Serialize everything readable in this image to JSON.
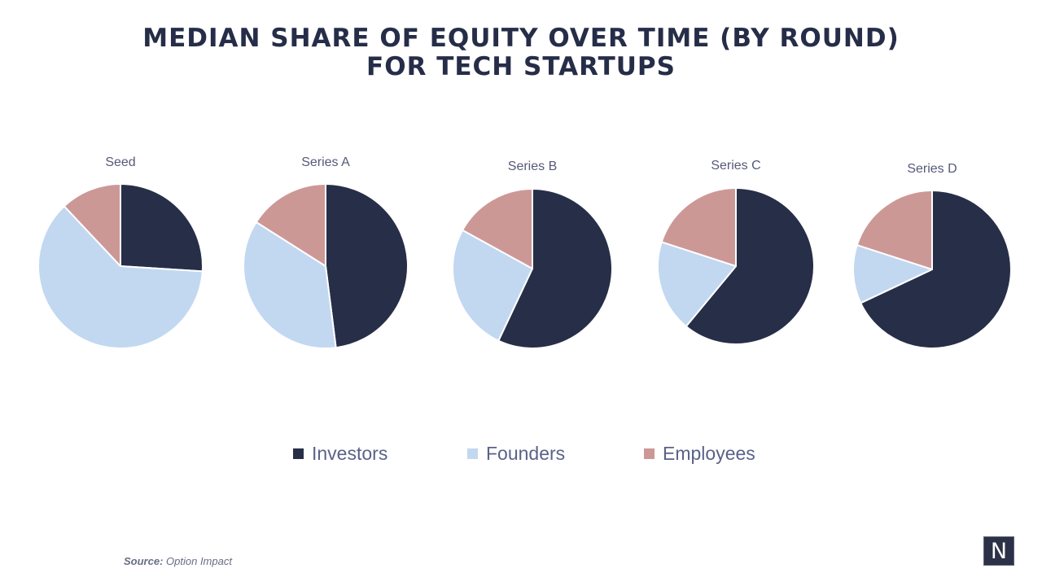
{
  "title_line1": "MEDIAN SHARE OF EQUITY OVER TIME (BY ROUND)",
  "title_line2": "FOR TECH STARTUPS",
  "source_label": "Source:",
  "source_text": "Option Impact",
  "logo_text": "N",
  "colors": {
    "Investors": "#272e48",
    "Founders": "#c2d8f1",
    "Employees": "#cc9896"
  },
  "chart_data": {
    "type": "pie",
    "series_names": [
      "Investors",
      "Founders",
      "Employees"
    ],
    "charts": [
      {
        "label": "Seed",
        "values": {
          "Investors": 26,
          "Founders": 62,
          "Employees": 12
        }
      },
      {
        "label": "Series A",
        "values": {
          "Investors": 48,
          "Founders": 36,
          "Employees": 16
        }
      },
      {
        "label": "Series B",
        "values": {
          "Investors": 57,
          "Founders": 26,
          "Employees": 17
        }
      },
      {
        "label": "Series C",
        "values": {
          "Investors": 61,
          "Founders": 19,
          "Employees": 20
        }
      },
      {
        "label": "Series D",
        "values": {
          "Investors": 68,
          "Founders": 12,
          "Employees": 20
        }
      }
    ],
    "legend": [
      "Investors",
      "Founders",
      "Employees"
    ],
    "legend_position": "bottom"
  }
}
